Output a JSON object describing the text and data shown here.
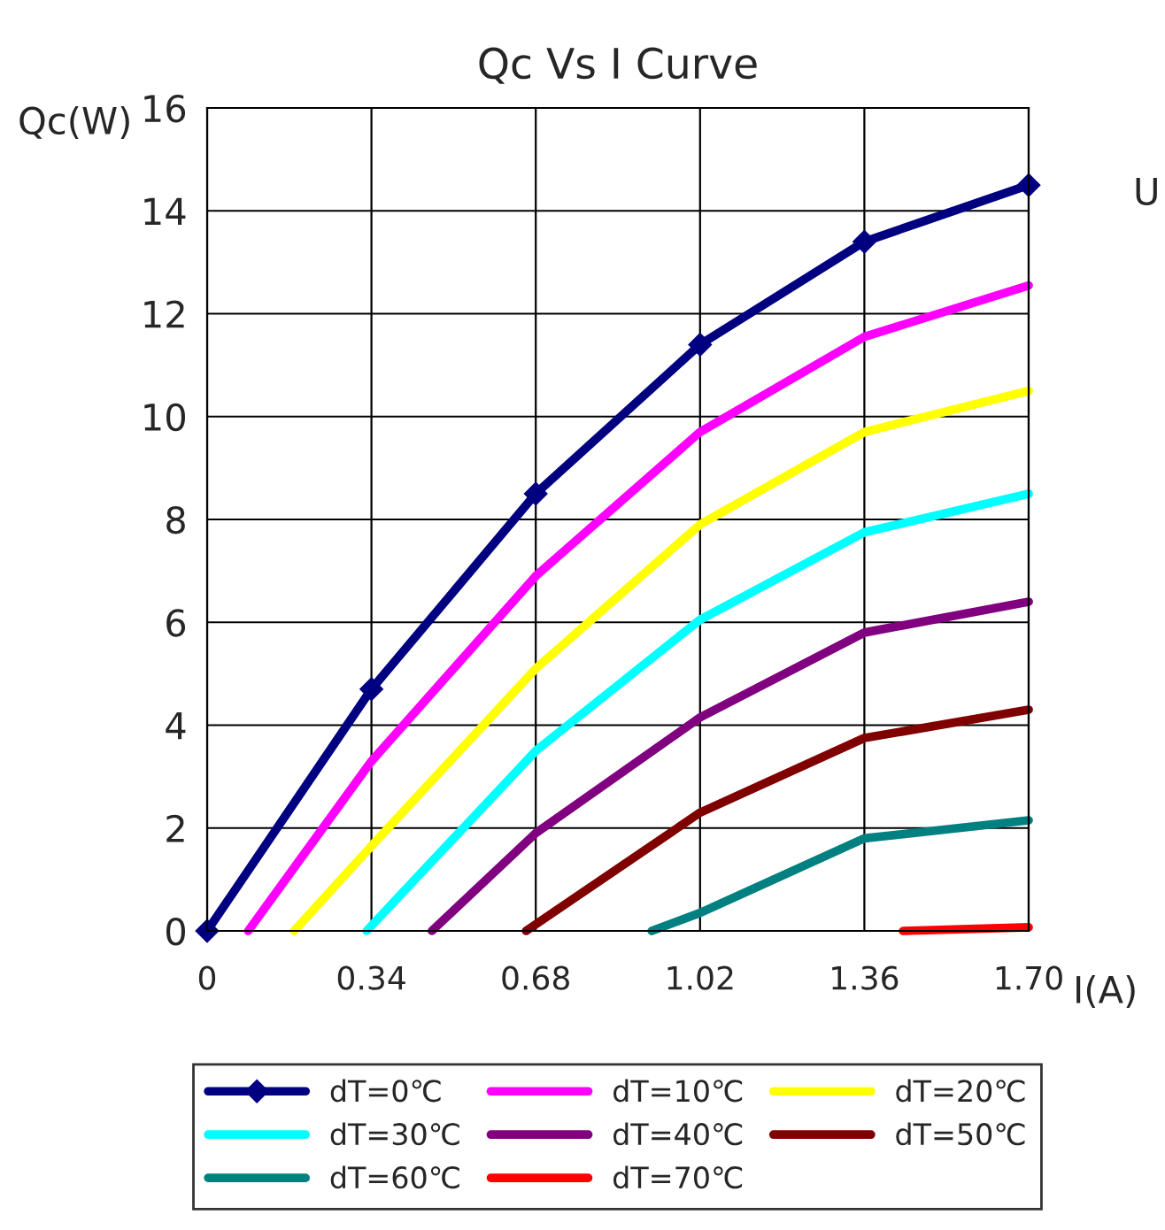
{
  "chart_data": {
    "type": "line",
    "title": "Qc Vs I Curve",
    "xlabel": "I(A)",
    "ylabel": "Qc(W)",
    "xlim": [
      0,
      1.7
    ],
    "xticks": [
      0,
      0.34,
      0.68,
      1.02,
      1.36,
      {
        "value": 1.7,
        "label": "1.70"
      }
    ],
    "ylim": [
      0,
      16
    ],
    "yticks": [
      0,
      2,
      4,
      6,
      8,
      10,
      12,
      14,
      16
    ],
    "grid": true,
    "legend": "bottom",
    "annotations": [
      "U"
    ],
    "series": [
      {
        "name": "dT=0℃",
        "color": "#000080",
        "marker": "diamond",
        "x": [
          0,
          0.34,
          0.68,
          1.02,
          1.36,
          1.7
        ],
        "values": [
          0,
          4.7,
          8.5,
          11.4,
          13.4,
          14.5
        ]
      },
      {
        "name": "dT=10℃",
        "color": "#ff00ff",
        "marker": "none",
        "x": [
          0.085,
          0.34,
          0.68,
          1.02,
          1.36,
          1.7
        ],
        "values": [
          0,
          3.3,
          6.9,
          9.7,
          11.55,
          12.55
        ]
      },
      {
        "name": "dT=20℃",
        "color": "#ffff00",
        "marker": "none",
        "x": [
          0.18,
          0.34,
          0.68,
          1.02,
          1.36,
          1.7
        ],
        "values": [
          0,
          1.65,
          5.1,
          7.9,
          9.7,
          10.5
        ]
      },
      {
        "name": "dT=30℃",
        "color": "#00ffff",
        "marker": "none",
        "x": [
          0.33,
          0.68,
          1.02,
          1.36,
          1.7
        ],
        "values": [
          0,
          3.5,
          6.05,
          7.75,
          8.5
        ]
      },
      {
        "name": "dT=40℃",
        "color": "#800080",
        "marker": "none",
        "x": [
          0.465,
          0.68,
          1.02,
          1.36,
          1.7
        ],
        "values": [
          0,
          1.9,
          4.15,
          5.8,
          6.4
        ]
      },
      {
        "name": "dT=50℃",
        "color": "#800000",
        "marker": "none",
        "x": [
          0.66,
          1.02,
          1.36,
          1.7
        ],
        "values": [
          0,
          2.3,
          3.75,
          4.3
        ]
      },
      {
        "name": "dT=60℃",
        "color": "#008080",
        "marker": "none",
        "x": [
          0.92,
          1.02,
          1.36,
          1.7
        ],
        "values": [
          0,
          0.35,
          1.8,
          2.15
        ]
      },
      {
        "name": "dT=70℃",
        "color": "#ff0000",
        "marker": "none",
        "x": [
          1.44,
          1.7
        ],
        "values": [
          0,
          0.07
        ]
      }
    ]
  }
}
